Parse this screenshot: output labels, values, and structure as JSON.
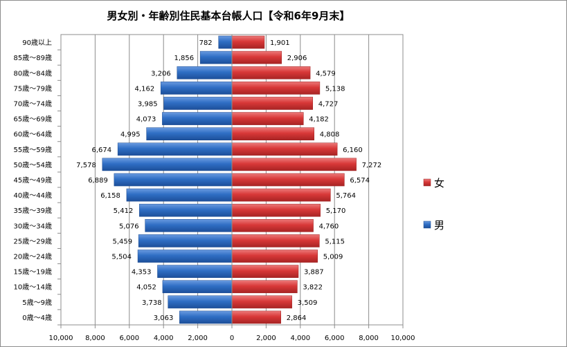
{
  "chart_data": {
    "type": "bar",
    "orientation": "horizontal-population-pyramid",
    "title": "男女別・年齢別住民基本台帳人口【令和6年9月末】",
    "categories": [
      "0歳～4歳",
      "5歳～9歳",
      "10歳～14歳",
      "15歳～19歳",
      "20歳～24歳",
      "25歳～29歳",
      "30歳～34歳",
      "35歳～39歳",
      "40歳～44歳",
      "45歳～49歳",
      "50歳～54歳",
      "55歳～59歳",
      "60歳～64歳",
      "65歳～69歳",
      "70歳～74歳",
      "75歳～79歳",
      "80歳～84歳",
      "85歳～89歳",
      "90歳以上"
    ],
    "series": [
      {
        "name": "男",
        "color": "#2e6fc7",
        "values": [
          3063,
          3738,
          4052,
          4353,
          5504,
          5459,
          5076,
          5412,
          6158,
          6889,
          7578,
          6674,
          4995,
          4073,
          3985,
          4162,
          3206,
          1856,
          782
        ]
      },
      {
        "name": "女",
        "color": "#d93a3a",
        "values": [
          2864,
          3509,
          3822,
          3887,
          5009,
          5115,
          4760,
          5170,
          5764,
          6574,
          7272,
          6160,
          4808,
          4182,
          4727,
          5138,
          4579,
          2906,
          1901
        ]
      }
    ],
    "xlim": [
      -10000,
      10000
    ],
    "x_ticks": [
      "10,000",
      "8,000",
      "6,000",
      "4,000",
      "2,000",
      "0",
      "2,000",
      "4,000",
      "6,000",
      "8,000",
      "10,000"
    ],
    "grid": true,
    "legend_position": "right"
  }
}
